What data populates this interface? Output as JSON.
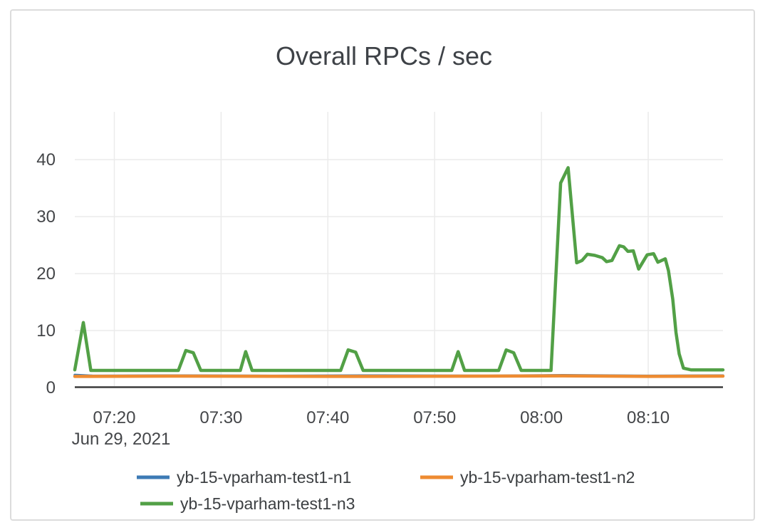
{
  "card": {
    "background": "#ffffff",
    "border_color": "#dcdcdc"
  },
  "chart_data": {
    "type": "line",
    "title": "Overall RPCs / sec",
    "xlabel": "",
    "ylabel": "",
    "grid": true,
    "legend_position": "bottom",
    "x_unit": "minutes after 07:00, Jun 29 2021",
    "x_axis": {
      "range_minutes": [
        16.3,
        77.0
      ],
      "tick_minutes": [
        20,
        30,
        40,
        50,
        60,
        70
      ],
      "tick_labels": [
        "07:20",
        "07:30",
        "07:40",
        "07:50",
        "08:00",
        "08:10"
      ],
      "date_label": "Jun 29, 2021"
    },
    "y_axis": {
      "ticks": [
        0,
        10,
        20,
        30,
        40
      ],
      "range": [
        0,
        48.4
      ]
    },
    "axis_line_color": "#3b3b3b",
    "gridline_color": "#ebebeb",
    "series": [
      {
        "name": "yb-15-vparham-test1-n1",
        "color": "#3d7bb5",
        "points": [
          [
            16.3,
            2.2
          ],
          [
            18,
            2.05
          ],
          [
            25,
            2.1
          ],
          [
            35,
            2.05
          ],
          [
            45,
            2.1
          ],
          [
            55,
            2.05
          ],
          [
            62,
            2.15
          ],
          [
            70,
            2.05
          ],
          [
            77,
            2.1
          ]
        ]
      },
      {
        "name": "yb-15-vparham-test1-n2",
        "color": "#ee8b31",
        "points": [
          [
            16.3,
            1.95
          ],
          [
            25,
            2.0
          ],
          [
            40,
            1.95
          ],
          [
            55,
            2.0
          ],
          [
            62,
            2.05
          ],
          [
            70,
            1.95
          ],
          [
            77,
            2.0
          ]
        ]
      },
      {
        "name": "yb-15-vparham-test1-n3",
        "color": "#52a046",
        "points": [
          [
            16.3,
            3.1
          ],
          [
            17.1,
            11.4
          ],
          [
            17.8,
            3.0
          ],
          [
            26.0,
            3.0
          ],
          [
            26.7,
            6.5
          ],
          [
            27.4,
            6.1
          ],
          [
            28.1,
            3.0
          ],
          [
            31.8,
            3.0
          ],
          [
            32.3,
            6.3
          ],
          [
            32.9,
            3.0
          ],
          [
            41.2,
            3.0
          ],
          [
            41.9,
            6.6
          ],
          [
            42.6,
            6.2
          ],
          [
            43.3,
            3.0
          ],
          [
            51.6,
            3.0
          ],
          [
            52.2,
            6.3
          ],
          [
            52.8,
            3.0
          ],
          [
            56.0,
            3.0
          ],
          [
            56.7,
            6.6
          ],
          [
            57.4,
            6.1
          ],
          [
            58.1,
            3.0
          ],
          [
            60.9,
            3.0
          ],
          [
            61.8,
            35.9
          ],
          [
            62.5,
            38.6
          ],
          [
            63.3,
            21.9
          ],
          [
            63.8,
            22.3
          ],
          [
            64.3,
            23.4
          ],
          [
            65.0,
            23.2
          ],
          [
            65.7,
            22.8
          ],
          [
            66.1,
            22.1
          ],
          [
            66.6,
            22.3
          ],
          [
            67.3,
            24.9
          ],
          [
            67.7,
            24.7
          ],
          [
            68.1,
            23.9
          ],
          [
            68.6,
            24.0
          ],
          [
            69.1,
            20.8
          ],
          [
            69.9,
            23.3
          ],
          [
            70.5,
            23.5
          ],
          [
            70.9,
            22.0
          ],
          [
            71.6,
            22.6
          ],
          [
            71.9,
            20.5
          ],
          [
            72.3,
            15.5
          ],
          [
            72.6,
            9.7
          ],
          [
            72.9,
            5.9
          ],
          [
            73.3,
            3.4
          ],
          [
            74.0,
            3.1
          ],
          [
            77.0,
            3.1
          ]
        ]
      }
    ]
  }
}
